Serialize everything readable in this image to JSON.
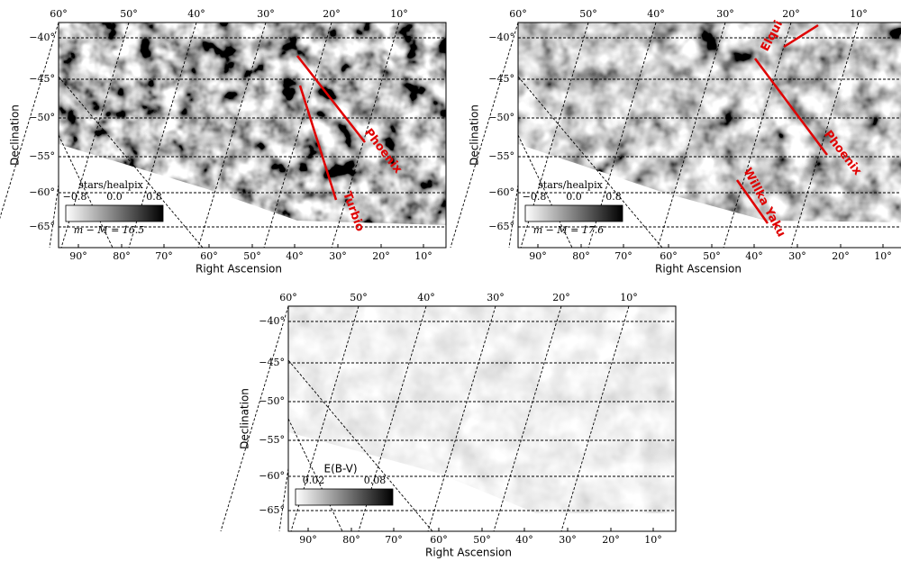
{
  "panels": [
    {
      "top_ticks": [
        "60°",
        "50°",
        "40°",
        "30°",
        "20°",
        "10°"
      ],
      "left_ticks": [
        "−40°",
        "−45°",
        "−50°",
        "−55°",
        "−60°",
        "−65°"
      ],
      "bottom_ticks": [
        "90°",
        "80°",
        "70°",
        "60°",
        "50°",
        "40°",
        "30°",
        "20°",
        "10°"
      ],
      "ylabel": "Declination",
      "xlabel": "Right Ascension",
      "colorbar": {
        "label": "stars/healpix",
        "ticks": [
          "−0.8",
          "0.0",
          "0.8"
        ],
        "annotation": "m − M = 16.5"
      },
      "streams": [
        "Phoenix",
        "Turbio"
      ]
    },
    {
      "top_ticks": [
        "60°",
        "50°",
        "40°",
        "30°",
        "20°",
        "10°"
      ],
      "left_ticks": [
        "−40°",
        "−45°",
        "−50°",
        "−55°",
        "−60°",
        "−65°"
      ],
      "bottom_ticks": [
        "90°",
        "80°",
        "70°",
        "60°",
        "50°",
        "40°",
        "30°",
        "20°",
        "10°"
      ],
      "ylabel": "Declination",
      "xlabel": "Right Ascension",
      "colorbar": {
        "label": "stars/healpix",
        "ticks": [
          "−0.8",
          "0.0",
          "0.8"
        ],
        "annotation": "m − M = 17.6"
      },
      "streams": [
        "Elqui",
        "Phoenix",
        "Willka Yaku"
      ]
    },
    {
      "top_ticks": [
        "60°",
        "50°",
        "40°",
        "30°",
        "20°",
        "10°"
      ],
      "left_ticks": [
        "−40°",
        "−45°",
        "−50°",
        "−55°",
        "−60°",
        "−65°"
      ],
      "bottom_ticks": [
        "90°",
        "80°",
        "70°",
        "60°",
        "50°",
        "40°",
        "30°",
        "20°",
        "10°"
      ],
      "ylabel": "Declination",
      "xlabel": "Right Ascension",
      "colorbar": {
        "label": "E(B-V)",
        "ticks": [
          "0.02",
          "0.08"
        ]
      },
      "streams": []
    }
  ]
}
